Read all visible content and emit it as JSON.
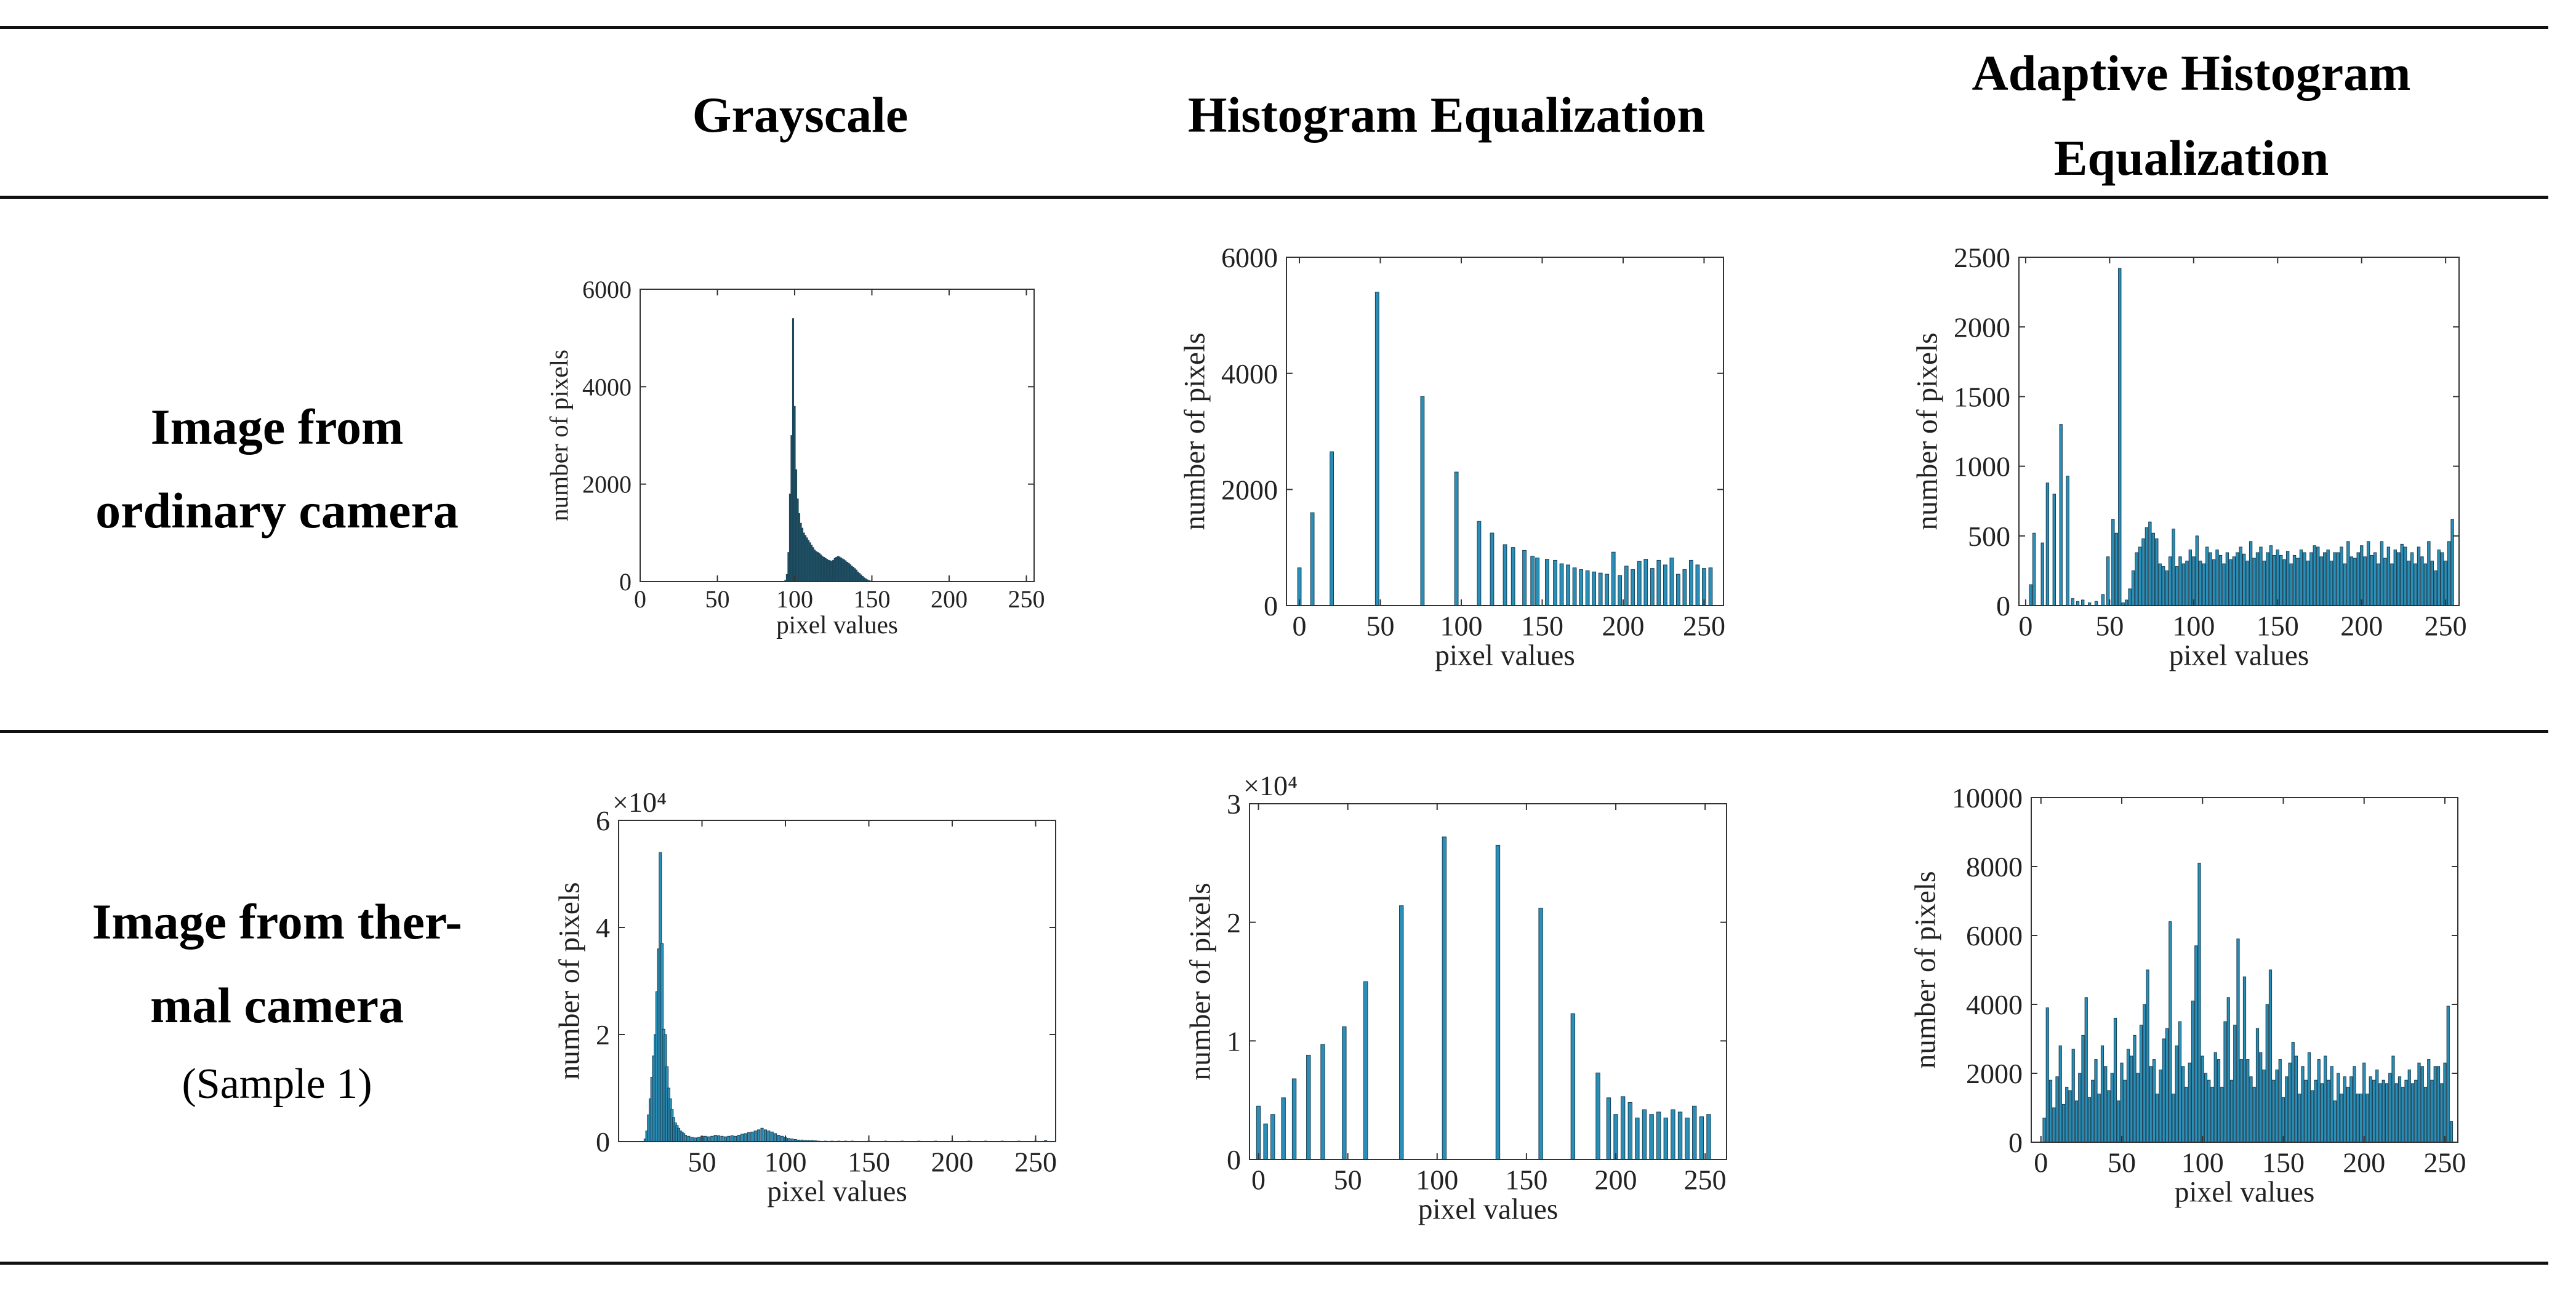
{
  "header": {
    "col1": "Grayscale",
    "col2": "Histogram Equalization",
    "col3_line1": "Adaptive Histogram",
    "col3_line2": "Equalization"
  },
  "rows": {
    "row1_line1": "Image from",
    "row1_line2": "ordinary camera",
    "row2_line1": "Image from ther-",
    "row2_line2": "mal camera",
    "row2_line3": "(Sample 1)"
  },
  "colors": {
    "bar": "#2a8fb8",
    "bar_dark": "#1f4f63",
    "axis": "#333333"
  },
  "chart_data": [
    {
      "id": "ordinary-grayscale",
      "type": "bar",
      "title": "",
      "xlabel": "pixel values",
      "ylabel": "number of pixels",
      "xlim": [
        0,
        255
      ],
      "ylim": [
        0,
        6000
      ],
      "xticks": [
        0,
        50,
        100,
        150,
        200,
        250
      ],
      "yticks": [
        0,
        2000,
        4000,
        6000
      ],
      "ytick_labels": [
        "0",
        "2000",
        "4000",
        "6000"
      ],
      "exponent_label": "",
      "bar_width": 1,
      "bar_color": "#1f4f63",
      "x": [
        94,
        95,
        96,
        97,
        98,
        99,
        100,
        101,
        102,
        103,
        104,
        105,
        106,
        107,
        108,
        109,
        110,
        111,
        112,
        113,
        114,
        115,
        116,
        117,
        118,
        119,
        120,
        121,
        122,
        123,
        124,
        125,
        126,
        127,
        128,
        129,
        130,
        131,
        132,
        133,
        134,
        135,
        136,
        137,
        138,
        139,
        140,
        141,
        142,
        143,
        144,
        145,
        146,
        147,
        148,
        149,
        150
      ],
      "values": [
        30,
        150,
        600,
        1800,
        3000,
        5400,
        3600,
        2300,
        1700,
        1400,
        1200,
        1100,
        1000,
        950,
        900,
        850,
        800,
        750,
        700,
        650,
        620,
        600,
        580,
        550,
        520,
        500,
        480,
        460,
        440,
        430,
        420,
        440,
        480,
        500,
        520,
        510,
        490,
        470,
        450,
        430,
        400,
        380,
        350,
        320,
        300,
        270,
        240,
        200,
        170,
        140,
        110,
        80,
        60,
        40,
        25,
        15,
        8
      ]
    },
    {
      "id": "ordinary-histeq",
      "type": "bar",
      "title": "",
      "xlabel": "pixel values",
      "ylabel": "number of pixels",
      "xlim": [
        -8,
        262
      ],
      "ylim": [
        0,
        6000
      ],
      "xticks": [
        0,
        50,
        100,
        150,
        200,
        250
      ],
      "yticks": [
        0,
        2000,
        4000,
        6000
      ],
      "ytick_labels": [
        "0",
        "2000",
        "4000",
        "6000"
      ],
      "exponent_label": "",
      "bar_width": 2.2,
      "bar_color": "#2a8fb8",
      "x": [
        0,
        8,
        20,
        48,
        76,
        97,
        111,
        119,
        127,
        132,
        139,
        144,
        147,
        153,
        158,
        162,
        166,
        170,
        174,
        178,
        182,
        186,
        190,
        194,
        198,
        202,
        206,
        210,
        214,
        218,
        222,
        226,
        230,
        234,
        238,
        242,
        246,
        250,
        254
      ],
      "values": [
        650,
        1600,
        2650,
        5400,
        3600,
        2300,
        1450,
        1250,
        1050,
        1000,
        950,
        850,
        820,
        800,
        780,
        720,
        700,
        650,
        620,
        600,
        580,
        560,
        540,
        920,
        520,
        680,
        620,
        760,
        800,
        640,
        780,
        700,
        820,
        540,
        620,
        780,
        700,
        640,
        650
      ]
    },
    {
      "id": "ordinary-adapthisteq",
      "type": "bar",
      "title": "",
      "xlabel": "pixel values",
      "ylabel": "number of pixels",
      "xlim": [
        -4,
        258
      ],
      "ylim": [
        0,
        2500
      ],
      "xticks": [
        0,
        50,
        100,
        150,
        200,
        250
      ],
      "yticks": [
        0,
        500,
        1000,
        1500,
        2000,
        2500
      ],
      "ytick_labels": [
        "0",
        "500",
        "1000",
        "1500",
        "2000",
        "2500"
      ],
      "exponent_label": "",
      "bar_width": 1.6,
      "bar_color": "#2a8fb8",
      "x": [
        3,
        5,
        10,
        13,
        17,
        21,
        25,
        28,
        31,
        34,
        38,
        42,
        46,
        49,
        52,
        54,
        56,
        58,
        60,
        62,
        64,
        66,
        68,
        70,
        72,
        74,
        76,
        78,
        80,
        82,
        84,
        86,
        88,
        90,
        92,
        94,
        96,
        98,
        100,
        102,
        104,
        106,
        108,
        110,
        112,
        114,
        116,
        118,
        120,
        122,
        124,
        126,
        128,
        130,
        132,
        134,
        136,
        138,
        140,
        142,
        144,
        146,
        148,
        150,
        152,
        154,
        156,
        158,
        160,
        162,
        164,
        166,
        168,
        170,
        172,
        174,
        176,
        178,
        180,
        182,
        184,
        186,
        188,
        190,
        192,
        194,
        196,
        198,
        200,
        202,
        204,
        206,
        208,
        210,
        212,
        214,
        216,
        218,
        220,
        222,
        224,
        226,
        228,
        230,
        232,
        234,
        236,
        238,
        240,
        242,
        244,
        246,
        248,
        250,
        252,
        254
      ],
      "values": [
        150,
        520,
        450,
        880,
        800,
        1300,
        930,
        50,
        30,
        40,
        20,
        30,
        80,
        350,
        620,
        520,
        2420,
        20,
        40,
        120,
        250,
        380,
        420,
        480,
        560,
        600,
        520,
        480,
        300,
        280,
        250,
        350,
        550,
        280,
        350,
        300,
        320,
        400,
        350,
        500,
        320,
        300,
        420,
        380,
        330,
        400,
        360,
        300,
        380,
        330,
        350,
        380,
        420,
        370,
        320,
        460,
        340,
        380,
        420,
        320,
        380,
        430,
        360,
        400,
        360,
        330,
        390,
        300,
        360,
        340,
        400,
        380,
        320,
        380,
        430,
        420,
        350,
        380,
        400,
        320,
        380,
        380,
        420,
        300,
        460,
        350,
        340,
        380,
        430,
        350,
        460,
        360,
        380,
        300,
        460,
        340,
        420,
        300,
        400,
        380,
        440,
        420,
        320,
        380,
        300,
        420,
        350,
        300,
        460,
        320,
        250,
        400,
        380,
        320,
        460,
        620
      ]
    },
    {
      "id": "thermal-grayscale",
      "type": "bar",
      "title": "",
      "xlabel": "pixel values",
      "ylabel": "number of pixels",
      "xlim": [
        0,
        262
      ],
      "ylim": [
        0,
        6
      ],
      "xticks": [
        50,
        100,
        150,
        200,
        250
      ],
      "yticks": [
        0,
        2,
        4,
        6
      ],
      "ytick_labels": [
        "0",
        "2",
        "4",
        "6"
      ],
      "exponent_label": "×10⁴",
      "bar_width": 1.5,
      "bar_color": "#2a8fb8",
      "x": [
        16,
        17,
        18,
        19,
        20,
        21,
        22,
        23,
        24,
        25,
        26,
        27,
        28,
        29,
        30,
        31,
        32,
        33,
        34,
        35,
        36,
        37,
        38,
        39,
        40,
        42,
        44,
        46,
        48,
        50,
        52,
        54,
        56,
        58,
        60,
        62,
        64,
        66,
        68,
        70,
        72,
        74,
        76,
        78,
        80,
        82,
        84,
        86,
        88,
        90,
        92,
        94,
        96,
        98,
        100,
        102,
        104,
        106,
        108,
        110,
        112,
        114,
        116,
        118,
        120,
        124,
        128,
        132,
        136,
        140,
        150,
        160,
        170,
        180,
        190,
        200,
        210,
        220,
        230,
        240,
        250,
        256
      ],
      "values": [
        0.05,
        0.2,
        0.5,
        0.8,
        1.2,
        1.6,
        2.0,
        2.8,
        3.6,
        5.4,
        3.7,
        2.1,
        2.0,
        1.4,
        1.0,
        0.8,
        0.6,
        0.45,
        0.35,
        0.3,
        0.25,
        0.2,
        0.18,
        0.15,
        0.12,
        0.1,
        0.08,
        0.07,
        0.08,
        0.1,
        0.1,
        0.09,
        0.1,
        0.12,
        0.11,
        0.1,
        0.09,
        0.1,
        0.11,
        0.1,
        0.12,
        0.14,
        0.15,
        0.17,
        0.18,
        0.2,
        0.22,
        0.25,
        0.22,
        0.2,
        0.18,
        0.15,
        0.12,
        0.1,
        0.08,
        0.06,
        0.05,
        0.04,
        0.03,
        0.03,
        0.02,
        0.02,
        0.02,
        0.015,
        0.01,
        0.01,
        0.01,
        0.01,
        0.01,
        0.01,
        0.01,
        0.01,
        0.01,
        0.01,
        0.01,
        0.01,
        0.01,
        0.01,
        0.01,
        0.01,
        0.01,
        0.02
      ]
    },
    {
      "id": "thermal-histeq",
      "type": "bar",
      "title": "",
      "xlabel": "pixel values",
      "ylabel": "number of pixels",
      "xlim": [
        -5,
        262
      ],
      "ylim": [
        0,
        3
      ],
      "xticks": [
        0,
        50,
        100,
        150,
        200,
        250
      ],
      "yticks": [
        0,
        1,
        2,
        3
      ],
      "ytick_labels": [
        "0",
        "1",
        "2",
        "3"
      ],
      "exponent_label": "×10⁴",
      "bar_width": 2.2,
      "bar_color": "#2a8fb8",
      "x": [
        0,
        4,
        8,
        14,
        20,
        28,
        36,
        48,
        60,
        80,
        104,
        134,
        158,
        176,
        190,
        196,
        200,
        204,
        208,
        212,
        216,
        220,
        224,
        228,
        232,
        236,
        240,
        244,
        248,
        252
      ],
      "values": [
        0.45,
        0.3,
        0.38,
        0.52,
        0.68,
        0.88,
        0.97,
        1.12,
        1.5,
        2.14,
        2.72,
        2.65,
        2.12,
        1.23,
        0.73,
        0.52,
        0.38,
        0.53,
        0.48,
        0.35,
        0.42,
        0.38,
        0.4,
        0.35,
        0.42,
        0.4,
        0.35,
        0.45,
        0.36,
        0.38
      ]
    },
    {
      "id": "thermal-adapthisteq",
      "type": "bar",
      "title": "",
      "xlabel": "pixel values",
      "ylabel": "number of pixels",
      "xlim": [
        -6,
        258
      ],
      "ylim": [
        0,
        10000
      ],
      "xticks": [
        0,
        50,
        100,
        150,
        200,
        250
      ],
      "yticks": [
        0,
        2000,
        4000,
        6000,
        8000,
        10000
      ],
      "ytick_labels": [
        "0",
        "2000",
        "4000",
        "6000",
        "8000",
        "10000"
      ],
      "exponent_label": "",
      "bar_width": 1.6,
      "bar_color": "#2a8fb8",
      "x": [
        2,
        4,
        6,
        8,
        10,
        12,
        14,
        16,
        18,
        20,
        22,
        24,
        26,
        28,
        30,
        32,
        34,
        36,
        38,
        40,
        42,
        44,
        46,
        48,
        50,
        52,
        54,
        56,
        58,
        60,
        62,
        64,
        66,
        68,
        70,
        72,
        74,
        76,
        78,
        80,
        82,
        84,
        86,
        88,
        90,
        92,
        94,
        96,
        98,
        100,
        102,
        104,
        106,
        108,
        110,
        112,
        114,
        116,
        118,
        120,
        122,
        124,
        126,
        128,
        130,
        132,
        134,
        136,
        138,
        140,
        142,
        144,
        146,
        148,
        150,
        152,
        154,
        156,
        158,
        160,
        162,
        164,
        166,
        168,
        170,
        172,
        174,
        176,
        178,
        180,
        182,
        184,
        186,
        188,
        190,
        192,
        194,
        196,
        198,
        200,
        202,
        204,
        206,
        208,
        210,
        212,
        214,
        216,
        218,
        220,
        222,
        224,
        226,
        228,
        230,
        232,
        234,
        236,
        238,
        240,
        242,
        244,
        246,
        248,
        250,
        252,
        254
      ],
      "values": [
        700,
        3900,
        1800,
        1000,
        1900,
        2800,
        1100,
        1600,
        1500,
        2700,
        1200,
        2000,
        3100,
        4200,
        1300,
        1800,
        2400,
        1400,
        2800,
        2200,
        1500,
        2000,
        3600,
        1200,
        2300,
        1800,
        2700,
        2500,
        3100,
        2000,
        3400,
        4000,
        5000,
        2200,
        2400,
        1400,
        2100,
        3000,
        3300,
        6400,
        1400,
        2800,
        3500,
        2200,
        1600,
        2300,
        4100,
        5700,
        8100,
        2500,
        2000,
        1800,
        1600,
        2600,
        2400,
        1600,
        3500,
        4200,
        1800,
        3400,
        5900,
        2400,
        4800,
        2400,
        1900,
        1600,
        3300,
        2600,
        2100,
        4000,
        5000,
        1800,
        2100,
        2400,
        1300,
        1900,
        2300,
        2900,
        2500,
        1400,
        2200,
        1800,
        2600,
        1500,
        1800,
        2400,
        1700,
        2500,
        1800,
        2200,
        1200,
        2000,
        1400,
        1900,
        1600,
        1900,
        2200,
        1400,
        1400,
        2300,
        1400,
        1900,
        1800,
        2100,
        1700,
        1800,
        1700,
        2000,
        2500,
        1700,
        1900,
        1600,
        1800,
        2100,
        1700,
        1800,
        2300,
        2200,
        1600,
        2400,
        1800,
        2200,
        2200,
        1700,
        2300,
        3950,
        600
      ]
    }
  ]
}
